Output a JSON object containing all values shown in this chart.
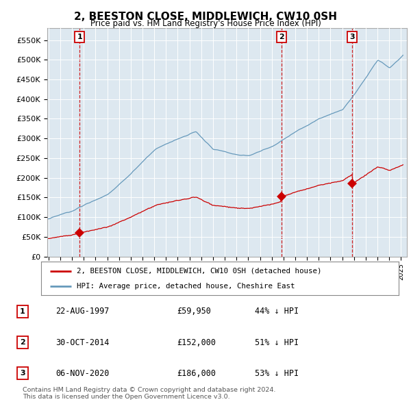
{
  "title": "2, BEESTON CLOSE, MIDDLEWICH, CW10 0SH",
  "subtitle": "Price paid vs. HM Land Registry's House Price Index (HPI)",
  "ylabel_vals": [
    "£0",
    "£50K",
    "£100K",
    "£150K",
    "£200K",
    "£250K",
    "£300K",
    "£350K",
    "£400K",
    "£450K",
    "£500K",
    "£550K"
  ],
  "yticks": [
    0,
    50000,
    100000,
    150000,
    200000,
    250000,
    300000,
    350000,
    400000,
    450000,
    500000,
    550000
  ],
  "ylim": [
    0,
    580000
  ],
  "xlim_start": 1994.9,
  "xlim_end": 2025.5,
  "sale_dates": [
    1997.644,
    2014.831,
    2020.847
  ],
  "sale_prices": [
    59950,
    152000,
    186000
  ],
  "sale_labels": [
    "1",
    "2",
    "3"
  ],
  "sale_info": [
    {
      "num": "1",
      "date": "22-AUG-1997",
      "price": "£59,950",
      "pct": "44% ↓ HPI"
    },
    {
      "num": "2",
      "date": "30-OCT-2014",
      "price": "£152,000",
      "pct": "51% ↓ HPI"
    },
    {
      "num": "3",
      "date": "06-NOV-2020",
      "price": "£186,000",
      "pct": "53% ↓ HPI"
    }
  ],
  "legend_line1": "2, BEESTON CLOSE, MIDDLEWICH, CW10 0SH (detached house)",
  "legend_line2": "HPI: Average price, detached house, Cheshire East",
  "footer": "Contains HM Land Registry data © Crown copyright and database right 2024.\nThis data is licensed under the Open Government Licence v3.0.",
  "plot_color_red": "#cc0000",
  "plot_color_blue": "#6699bb",
  "background_color": "#dde8f0",
  "fig_bg_color": "#ffffff"
}
